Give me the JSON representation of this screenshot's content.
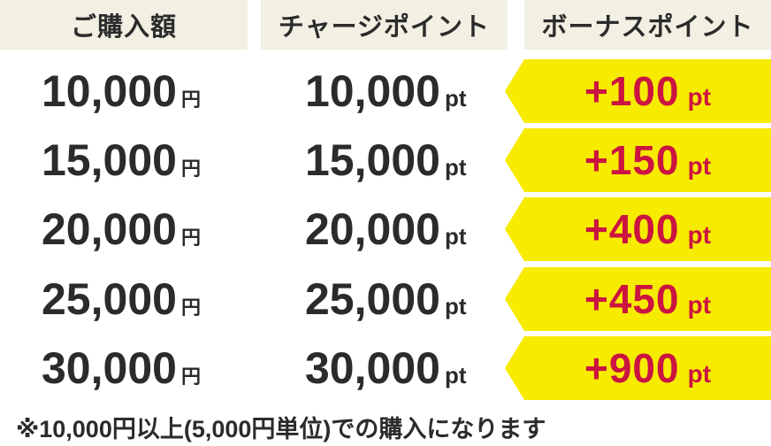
{
  "palette": {
    "background": "#ffffff",
    "header_bg": "#f2efe3",
    "text_dark": "#2b2b2b",
    "arrow_yellow": "#f7eb00",
    "bonus_red": "#cb1441"
  },
  "header": {
    "purchase": "ご購入額",
    "charge": "チャージポイント",
    "bonus": "ボーナスポイント"
  },
  "rows": [
    {
      "amount": "10,000",
      "amount_unit": "円",
      "charge": "10,000",
      "charge_unit": "pt",
      "bonus": "+100",
      "bonus_unit": "pt"
    },
    {
      "amount": "15,000",
      "amount_unit": "円",
      "charge": "15,000",
      "charge_unit": "pt",
      "bonus": "+150",
      "bonus_unit": "pt"
    },
    {
      "amount": "20,000",
      "amount_unit": "円",
      "charge": "20,000",
      "charge_unit": "pt",
      "bonus": "+400",
      "bonus_unit": "pt"
    },
    {
      "amount": "25,000",
      "amount_unit": "円",
      "charge": "25,000",
      "charge_unit": "pt",
      "bonus": "+450",
      "bonus_unit": "pt"
    },
    {
      "amount": "30,000",
      "amount_unit": "円",
      "charge": "30,000",
      "charge_unit": "pt",
      "bonus": "+900",
      "bonus_unit": "pt"
    }
  ],
  "footnote": "※10,000円以上(5,000円単位)での購入になります",
  "chart_data": {
    "type": "table",
    "title": "チャージポイント・ボーナスポイント表",
    "columns": [
      "ご購入額",
      "チャージポイント",
      "ボーナスポイント"
    ],
    "rows": [
      [
        "10,000円",
        "10,000pt",
        "+100pt"
      ],
      [
        "15,000円",
        "15,000pt",
        "+150pt"
      ],
      [
        "20,000円",
        "20,000pt",
        "+400pt"
      ],
      [
        "25,000円",
        "25,000pt",
        "+450pt"
      ],
      [
        "30,000円",
        "30,000pt",
        "+900pt"
      ]
    ],
    "purchase_amounts_yen": [
      10000,
      15000,
      20000,
      25000,
      30000
    ],
    "charge_points": [
      10000,
      15000,
      20000,
      25000,
      30000
    ],
    "bonus_points": [
      100,
      150,
      400,
      450,
      900
    ],
    "footnote": "※10,000円以上(5,000円単位)での購入になります",
    "layout_hints": {
      "header_bg": "#f2efe3",
      "bonus_style": "yellow left-pointing arrow tag with red text",
      "grid": false
    }
  }
}
